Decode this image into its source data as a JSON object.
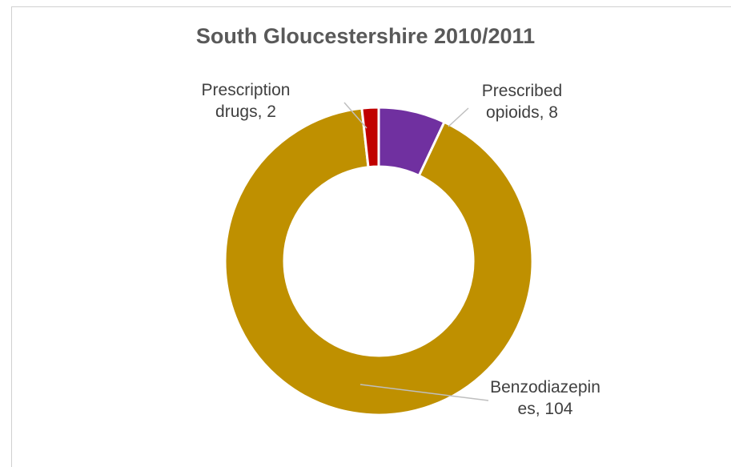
{
  "chart_data": {
    "type": "pie",
    "variant": "doughnut",
    "title": "South Gloucestershire 2010/2011",
    "legend": "none",
    "categories": [
      "Prescribed opioids",
      "Benzodiazepines",
      "Prescription drugs"
    ],
    "values": [
      8,
      104,
      2
    ],
    "colors": [
      "#7030a0",
      "#bf9000",
      "#c00000"
    ],
    "data_labels": [
      [
        "Prescribed",
        "opioids, 8"
      ],
      [
        "Benzodiazepin",
        "es, 104"
      ],
      [
        "Prescription",
        "drugs, 2"
      ]
    ]
  }
}
